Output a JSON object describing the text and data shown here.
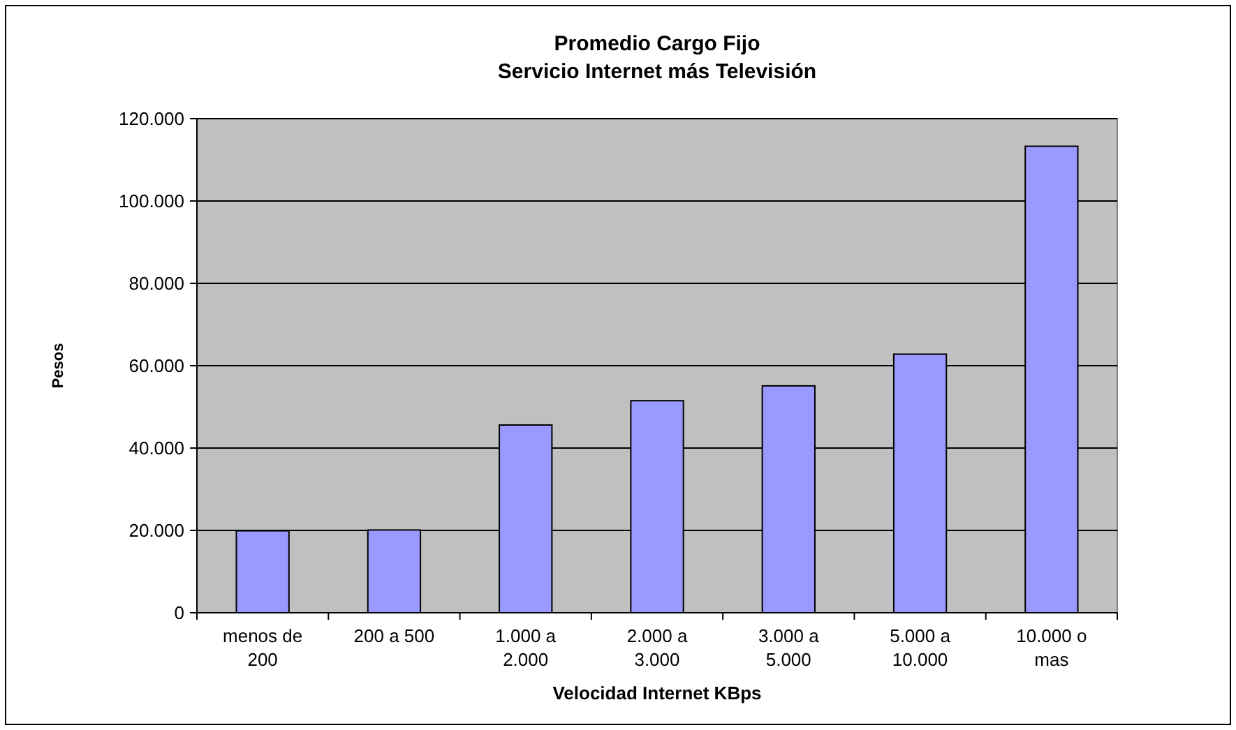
{
  "chart_data": {
    "type": "bar",
    "title": "Promedio Cargo Fijo\nServicio Internet más Televisión",
    "xlabel": "Velocidad Internet KBps",
    "ylabel": "Pesos",
    "categories": [
      "menos de 200",
      "200 a 500",
      "1.000 a 2.000",
      "2.000 a 3.000",
      "3.000 a 5.000",
      "5.000 a 10.000",
      "10.000 o mas"
    ],
    "values": [
      19900,
      20100,
      45600,
      51500,
      55100,
      62800,
      113300
    ],
    "color": "#9999ff",
    "ylim": [
      0,
      120000
    ],
    "yticks": [
      {
        "value": 0,
        "label": "0"
      },
      {
        "value": 20000,
        "label": "20.000"
      },
      {
        "value": 40000,
        "label": "40.000"
      },
      {
        "value": 60000,
        "label": "60.000"
      },
      {
        "value": 80000,
        "label": "80.000"
      },
      {
        "value": 100000,
        "label": "100.000"
      },
      {
        "value": 120000,
        "label": "120.000"
      }
    ],
    "grid": "y"
  }
}
